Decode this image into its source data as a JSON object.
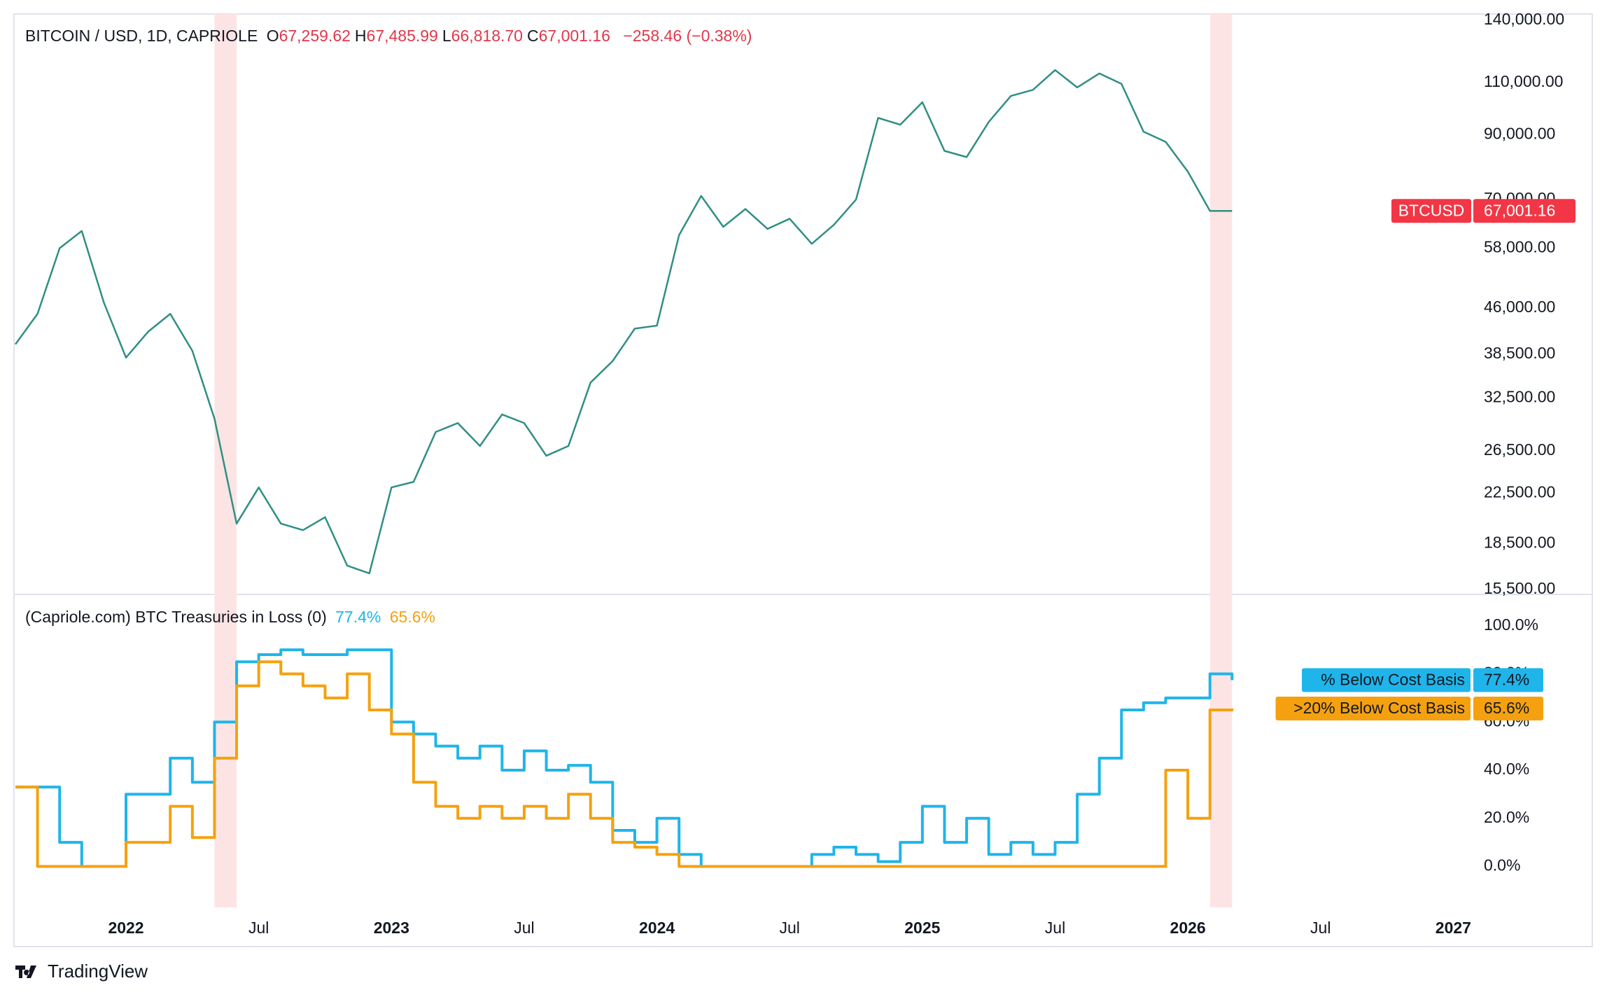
{
  "chart_data": [
    {
      "type": "line",
      "title": "BITCOIN / USD, 1D, CAPRIOLE",
      "ohlc": [
        {
          "key": "O",
          "value": "67,259.62"
        },
        {
          "key": "H",
          "value": "67,485.99"
        },
        {
          "key": "L",
          "value": "66,818.70"
        },
        {
          "key": "C",
          "value": "67,001.16"
        }
      ],
      "change": "−258.46 (−0.38%)",
      "symbol": "BTCUSD",
      "current": {
        "value": 67001.16,
        "label": "67,001.16"
      },
      "yscale": "log",
      "grid": false,
      "x": [
        "2021-08",
        "2021-09",
        "2021-10",
        "2021-11",
        "2021-12",
        "2022-01",
        "2022-02",
        "2022-03",
        "2022-04",
        "2022-05",
        "2022-06",
        "2022-07",
        "2022-08",
        "2022-09",
        "2022-10",
        "2022-11",
        "2022-12",
        "2023-01",
        "2023-02",
        "2023-03",
        "2023-04",
        "2023-05",
        "2023-06",
        "2023-07",
        "2023-08",
        "2023-09",
        "2023-10",
        "2023-11",
        "2023-12",
        "2024-01",
        "2024-02",
        "2024-03",
        "2024-04",
        "2024-05",
        "2024-06",
        "2024-07",
        "2024-08",
        "2024-09",
        "2024-10",
        "2024-11",
        "2024-12",
        "2025-01",
        "2025-02",
        "2025-03",
        "2025-04",
        "2025-05",
        "2025-06",
        "2025-07",
        "2025-08",
        "2025-09",
        "2025-10",
        "2025-11",
        "2025-12",
        "2026-01",
        "2026-02",
        "2026-03"
      ],
      "series": [
        {
          "name": "BTCUSD",
          "color": "#2f8f84",
          "values": [
            40000,
            45000,
            58000,
            62000,
            47000,
            38000,
            42000,
            45000,
            39000,
            30000,
            20000,
            23000,
            20000,
            19500,
            20500,
            17000,
            16500,
            23000,
            23500,
            28500,
            29500,
            27000,
            30500,
            29500,
            26000,
            27000,
            34500,
            37500,
            42500,
            43000,
            61000,
            71000,
            63000,
            67500,
            62500,
            65000,
            59000,
            63500,
            70000,
            96000,
            93500,
            102000,
            84500,
            82500,
            94500,
            104500,
            107000,
            115500,
            108000,
            114000,
            109500,
            91000,
            87500,
            78000,
            67000,
            67001.16
          ]
        }
      ],
      "ylim": [
        15500,
        140000
      ],
      "yticks": [
        {
          "value": 140000,
          "label": "140,000.00"
        },
        {
          "value": 110000,
          "label": "110,000.00"
        },
        {
          "value": 90000,
          "label": "90,000.00"
        },
        {
          "value": 70000,
          "label": "70,000.00"
        },
        {
          "value": 58000,
          "label": "58,000.00"
        },
        {
          "value": 46000,
          "label": "46,000.00"
        },
        {
          "value": 38500,
          "label": "38,500.00"
        },
        {
          "value": 32500,
          "label": "32,500.00"
        },
        {
          "value": 26500,
          "label": "26,500.00"
        },
        {
          "value": 22500,
          "label": "22,500.00"
        },
        {
          "value": 18500,
          "label": "18,500.00"
        },
        {
          "value": 15500,
          "label": "15,500.00"
        }
      ],
      "highlight_ranges": [
        [
          "2022-05",
          "2022-06"
        ],
        [
          "2026-02",
          "2026-03"
        ]
      ],
      "highlight_color": "#fde4e4",
      "xlim": [
        "2021-08",
        "2027-02"
      ]
    },
    {
      "type": "line",
      "step": true,
      "title": "(Capriole.com) BTC Treasuries in Loss (0)",
      "grid": false,
      "x": [
        "2021-08",
        "2021-09",
        "2021-10",
        "2021-11",
        "2021-12",
        "2022-01",
        "2022-02",
        "2022-03",
        "2022-04",
        "2022-05",
        "2022-06",
        "2022-07",
        "2022-08",
        "2022-09",
        "2022-10",
        "2022-11",
        "2022-12",
        "2023-01",
        "2023-02",
        "2023-03",
        "2023-04",
        "2023-05",
        "2023-06",
        "2023-07",
        "2023-08",
        "2023-09",
        "2023-10",
        "2023-11",
        "2023-12",
        "2024-01",
        "2024-02",
        "2024-03",
        "2024-04",
        "2024-05",
        "2024-06",
        "2024-07",
        "2024-08",
        "2024-09",
        "2024-10",
        "2024-11",
        "2024-12",
        "2025-01",
        "2025-02",
        "2025-03",
        "2025-04",
        "2025-05",
        "2025-06",
        "2025-07",
        "2025-08",
        "2025-09",
        "2025-10",
        "2025-11",
        "2025-12",
        "2026-01",
        "2026-02",
        "2026-03"
      ],
      "series": [
        {
          "name": "% Below Cost Basis",
          "color": "#1fb5ea",
          "current": {
            "value": 77.4,
            "label": "77.4%"
          },
          "values": [
            33,
            33,
            10,
            0,
            0,
            30,
            30,
            45,
            35,
            60,
            85,
            88,
            90,
            88,
            88,
            90,
            90,
            60,
            55,
            50,
            45,
            50,
            40,
            48,
            40,
            42,
            35,
            15,
            10,
            20,
            5,
            0,
            0,
            0,
            0,
            0,
            5,
            8,
            5,
            2,
            10,
            25,
            10,
            20,
            5,
            10,
            5,
            10,
            30,
            45,
            65,
            68,
            70,
            70,
            80,
            77.4
          ]
        },
        {
          "name": ">20% Below Cost Basis",
          "color": "#f5a10f",
          "current": {
            "value": 65.6,
            "label": "65.6%"
          },
          "values": [
            33,
            0,
            0,
            0,
            0,
            10,
            10,
            25,
            12,
            45,
            75,
            85,
            80,
            75,
            70,
            80,
            65,
            55,
            35,
            25,
            20,
            25,
            20,
            25,
            20,
            30,
            20,
            10,
            8,
            5,
            0,
            0,
            0,
            0,
            0,
            0,
            0,
            0,
            0,
            0,
            0,
            0,
            0,
            0,
            0,
            0,
            0,
            0,
            0,
            0,
            0,
            0,
            40,
            20,
            65,
            65.6
          ]
        }
      ],
      "ylim": [
        -17,
        113
      ],
      "yticks": [
        {
          "value": 100,
          "label": "100.0%"
        },
        {
          "value": 80,
          "label": "80.0%"
        },
        {
          "value": 60,
          "label": "60.0%"
        },
        {
          "value": 40,
          "label": "40.0%"
        },
        {
          "value": 20,
          "label": "20.0%"
        },
        {
          "value": 0,
          "label": "0.0%"
        }
      ],
      "xlim": [
        "2021-08",
        "2027-02"
      ],
      "xticks": [
        {
          "value": "2022-01",
          "label": "2022"
        },
        {
          "value": "2022-07",
          "label": "Jul"
        },
        {
          "value": "2023-01",
          "label": "2023"
        },
        {
          "value": "2023-07",
          "label": "Jul"
        },
        {
          "value": "2024-01",
          "label": "2024"
        },
        {
          "value": "2024-07",
          "label": "Jul"
        },
        {
          "value": "2025-01",
          "label": "2025"
        },
        {
          "value": "2025-07",
          "label": "Jul"
        },
        {
          "value": "2026-01",
          "label": "2026"
        },
        {
          "value": "2026-07",
          "label": "Jul"
        },
        {
          "value": "2027-01",
          "label": "2027"
        }
      ]
    }
  ],
  "footer": {
    "brand": "TradingView"
  }
}
